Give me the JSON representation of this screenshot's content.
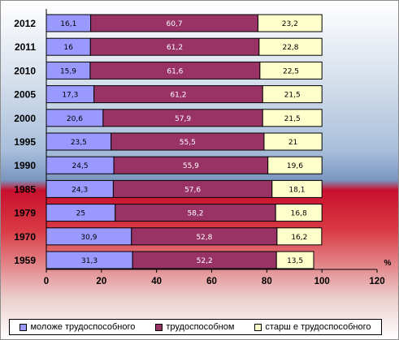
{
  "chart_data": {
    "type": "bar",
    "orientation": "horizontal",
    "stacked": true,
    "categories": [
      "2012",
      "2011",
      "2010",
      "2005",
      "2000",
      "1995",
      "1990",
      "1985",
      "1979",
      "1970",
      "1959"
    ],
    "series": [
      {
        "name": "моложе трудоспособного",
        "color": "#9999ff",
        "values": [
          16.1,
          16,
          15.9,
          17.3,
          20.6,
          23.5,
          24.5,
          24.3,
          25,
          30.9,
          31.3
        ]
      },
      {
        "name": "трудоспособном",
        "color": "#993366",
        "values": [
          60.7,
          61.2,
          61.6,
          61.2,
          57.9,
          55.5,
          55.9,
          57.6,
          58.2,
          52.8,
          52.2
        ]
      },
      {
        "name": "старш е трудоспособного",
        "color": "#ffffcc",
        "values": [
          23.2,
          22.8,
          22.5,
          21.5,
          21.5,
          21,
          19.6,
          18.1,
          16.8,
          16.2,
          13.5
        ]
      }
    ],
    "value_labels": [
      [
        "16,1",
        "16",
        "15,9",
        "17,3",
        "20,6",
        "23,5",
        "24,5",
        "24,3",
        "25",
        "30,9",
        "31,3"
      ],
      [
        "60,7",
        "61,2",
        "61,6",
        "61,2",
        "57,9",
        "55,5",
        "55,9",
        "57,6",
        "58,2",
        "52,8",
        "52,2"
      ],
      [
        "23,2",
        "22,8",
        "22,5",
        "21,5",
        "21,5",
        "21",
        "19,6",
        "18,1",
        "16,8",
        "16,2",
        "13,5"
      ]
    ],
    "x_ticks": [
      "0",
      "20",
      "40",
      "60",
      "80",
      "100",
      "120"
    ],
    "xlim": [
      0,
      120
    ],
    "x_unit": "%",
    "legend_position": "bottom",
    "grid": false
  }
}
